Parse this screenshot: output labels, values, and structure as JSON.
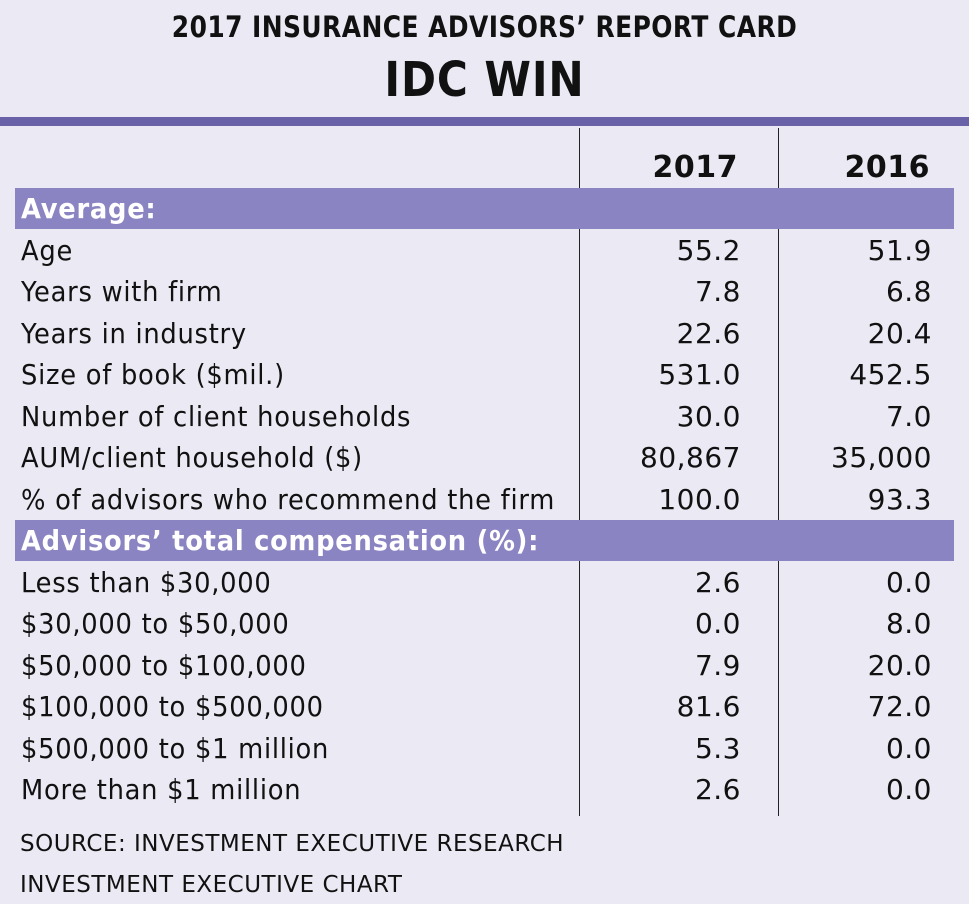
{
  "supertitle": "2017 INSURANCE ADVISORS’ REPORT CARD",
  "title": "IDC WIN",
  "columns": [
    "2017",
    "2016"
  ],
  "colors": {
    "rule": "#6a62a8",
    "section": "#8b84c2",
    "background": "#ebe9f3"
  },
  "sections": [
    {
      "label": "Average:",
      "rows": [
        {
          "label": "Age",
          "v2017": "55.2",
          "v2016": "51.9"
        },
        {
          "label": "Years with firm",
          "v2017": "7.8",
          "v2016": "6.8"
        },
        {
          "label": "Years in industry",
          "v2017": "22.6",
          "v2016": "20.4"
        },
        {
          "label": "Size of book ($mil.)",
          "v2017": "531.0",
          "v2016": "452.5"
        },
        {
          "label": "Number of client households",
          "v2017": "30.0",
          "v2016": "7.0"
        },
        {
          "label": "AUM/client household ($)",
          "v2017": "80,867",
          "v2016": "35,000"
        },
        {
          "label": "% of advisors who recommend the firm",
          "v2017": "100.0",
          "v2016": "93.3"
        }
      ]
    },
    {
      "label": "Advisors’ total compensation (%):",
      "rows": [
        {
          "label": "Less than $30,000",
          "v2017": "2.6",
          "v2016": "0.0"
        },
        {
          "label": "$30,000 to $50,000",
          "v2017": "0.0",
          "v2016": "8.0"
        },
        {
          "label": "$50,000 to $100,000",
          "v2017": "7.9",
          "v2016": "20.0"
        },
        {
          "label": "$100,000 to $500,000",
          "v2017": "81.6",
          "v2016": "72.0"
        },
        {
          "label": "$500,000 to $1 million",
          "v2017": "5.3",
          "v2016": "0.0"
        },
        {
          "label": "More than $1 million",
          "v2017": "2.6",
          "v2016": "0.0"
        }
      ]
    }
  ],
  "footer": {
    "source": "SOURCE: INVESTMENT EXECUTIVE RESEARCH",
    "credit": "INVESTMENT EXECUTIVE CHART"
  },
  "chart_data": {
    "type": "table",
    "title": "IDC WIN",
    "subtitle": "2017 INSURANCE ADVISORS’ REPORT CARD",
    "columns": [
      "2017",
      "2016"
    ],
    "series": [
      {
        "name": "2017",
        "values": [
          55.2,
          7.8,
          22.6,
          531.0,
          30.0,
          80867,
          100.0,
          2.6,
          0.0,
          7.9,
          81.6,
          5.3,
          2.6
        ]
      },
      {
        "name": "2016",
        "values": [
          51.9,
          6.8,
          20.4,
          452.5,
          7.0,
          35000,
          93.3,
          0.0,
          8.0,
          20.0,
          72.0,
          0.0,
          0.0
        ]
      }
    ],
    "categories": [
      "Age",
      "Years with firm",
      "Years in industry",
      "Size of book ($mil.)",
      "Number of client households",
      "AUM/client household ($)",
      "% of advisors who recommend the firm",
      "Less than $30,000",
      "$30,000 to $50,000",
      "$50,000 to $100,000",
      "$100,000 to $500,000",
      "$500,000 to $1 million",
      "More than $1 million"
    ]
  }
}
